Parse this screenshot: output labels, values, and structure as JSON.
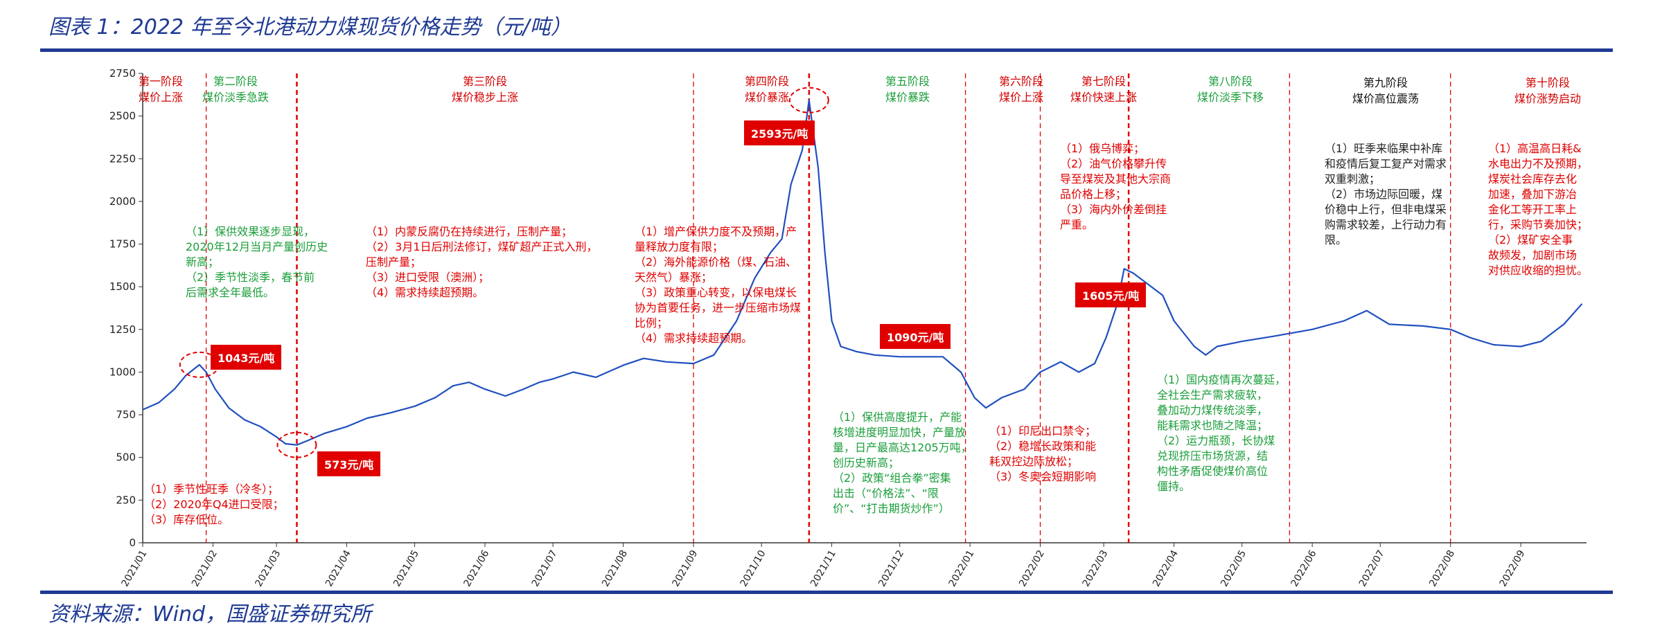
{
  "header": {
    "title": "图表 1：2022 年至今北港动力煤现货价格走势（元/吨）",
    "source": "资料来源：Wind，国盛证券研究所"
  },
  "colors": {
    "line": "#1f4fbf",
    "stage_divider": "#e00000",
    "callout_box": "#e00000",
    "rule": "#1f3a93"
  },
  "chart_data": {
    "type": "line",
    "title": "",
    "xlabel": "",
    "ylabel": "",
    "ylim": [
      0,
      2750
    ],
    "y_ticks": [
      0,
      250,
      500,
      750,
      1000,
      1250,
      1500,
      1750,
      2000,
      2250,
      2500,
      2750
    ],
    "x_range": [
      "2021-01-01",
      "2022-09-30"
    ],
    "x_ticks": [
      "2021/01",
      "2021/02",
      "2021/03",
      "2021/04",
      "2021/05",
      "2021/06",
      "2021/07",
      "2021/08",
      "2021/09",
      "2021/10",
      "2021/11",
      "2021/12",
      "2022/01",
      "2022/02",
      "2022/03",
      "2022/04",
      "2022/05",
      "2022/06",
      "2022/07",
      "2022/08",
      "2022/09"
    ],
    "grid": false,
    "series": [
      {
        "x": [
          "2021-01-01",
          "2021-01-08",
          "2021-01-15",
          "2021-01-20",
          "2021-01-26",
          "2021-01-29",
          "2021-02-02",
          "2021-02-08",
          "2021-02-15",
          "2021-02-22",
          "2021-03-01",
          "2021-03-05",
          "2021-03-10",
          "2021-03-15",
          "2021-03-22",
          "2021-04-01",
          "2021-04-10",
          "2021-04-20",
          "2021-05-01",
          "2021-05-10",
          "2021-05-18",
          "2021-05-25",
          "2021-06-01",
          "2021-06-10",
          "2021-06-18",
          "2021-06-25",
          "2021-07-01",
          "2021-07-10",
          "2021-07-20",
          "2021-08-01",
          "2021-08-10",
          "2021-08-20",
          "2021-09-01",
          "2021-09-10",
          "2021-09-20",
          "2021-09-28",
          "2021-10-05",
          "2021-10-10",
          "2021-10-14",
          "2021-10-19",
          "2021-10-22",
          "2021-10-26",
          "2021-10-29",
          "2021-11-01",
          "2021-11-05",
          "2021-11-12",
          "2021-11-20",
          "2021-12-01",
          "2021-12-10",
          "2021-12-20",
          "2021-12-28",
          "2022-01-03",
          "2022-01-08",
          "2022-01-15",
          "2022-01-25",
          "2022-02-01",
          "2022-02-10",
          "2022-02-18",
          "2022-02-25",
          "2022-03-02",
          "2022-03-07",
          "2022-03-10",
          "2022-03-14",
          "2022-03-20",
          "2022-03-27",
          "2022-04-01",
          "2022-04-10",
          "2022-04-15",
          "2022-04-20",
          "2022-05-01",
          "2022-05-15",
          "2022-06-01",
          "2022-06-15",
          "2022-06-25",
          "2022-07-05",
          "2022-07-20",
          "2022-08-01",
          "2022-08-10",
          "2022-08-20",
          "2022-09-01",
          "2022-09-10",
          "2022-09-20",
          "2022-09-28"
        ],
        "y": [
          780,
          820,
          900,
          980,
          1043,
          1000,
          900,
          790,
          720,
          680,
          620,
          580,
          573,
          600,
          640,
          680,
          730,
          760,
          800,
          850,
          920,
          940,
          900,
          860,
          900,
          940,
          960,
          1000,
          970,
          1040,
          1080,
          1060,
          1050,
          1100,
          1300,
          1550,
          1700,
          1780,
          2100,
          2300,
          2593,
          2200,
          1700,
          1300,
          1150,
          1120,
          1100,
          1090,
          1090,
          1090,
          1000,
          850,
          790,
          850,
          900,
          1000,
          1060,
          1000,
          1050,
          1200,
          1400,
          1605,
          1580,
          1520,
          1450,
          1300,
          1150,
          1100,
          1150,
          1180,
          1210,
          1250,
          1300,
          1360,
          1280,
          1270,
          1250,
          1200,
          1160,
          1150,
          1180,
          1280,
          1400
        ]
      }
    ],
    "callouts": [
      "1043元/吨",
      "573元/吨",
      "2593元/吨",
      "1090元/吨",
      "1605元/吨"
    ],
    "stages": [
      {
        "name": "第一阶段",
        "desc": "煤价上涨",
        "color": "red"
      },
      {
        "name": "第二阶段",
        "desc": "煤价淡季急跌",
        "color": "green"
      },
      {
        "name": "第三阶段",
        "desc": "煤价稳步上涨",
        "color": "red"
      },
      {
        "name": "第四阶段",
        "desc": "煤价暴涨",
        "color": "red"
      },
      {
        "name": "第五阶段",
        "desc": "煤价暴跌",
        "color": "green"
      },
      {
        "name": "第六阶段",
        "desc": "煤价上涨",
        "color": "red"
      },
      {
        "name": "第七阶段",
        "desc": "煤价快速上涨",
        "color": "red"
      },
      {
        "name": "第八阶段",
        "desc": "煤价淡季下移",
        "color": "green"
      },
      {
        "name": "第九阶段",
        "desc": "煤价高位震荡",
        "color": "black"
      },
      {
        "name": "第十阶段",
        "desc": "煤价涨势启动",
        "color": "red"
      }
    ],
    "annotations": [
      {
        "id": "s1",
        "color": "red",
        "text": "（1）季节性旺季（冷冬）；\n（2）2020年Q4进口受限；\n（3）库存低位。"
      },
      {
        "id": "s2",
        "color": "green",
        "text": "（1）保供效果逐步显现，\n2020年12月当月产量创历史\n新高；\n（2）季节性淡季，春节前\n后需求全年最低。"
      },
      {
        "id": "s3",
        "color": "red",
        "text": "（1）内蒙反腐仍在持续进行，压制产量；\n（2）3月1日后刑法修订，煤矿超产正式入刑，\n压制产量；\n（3）进口受限（澳洲）；\n（4）需求持续超预期。"
      },
      {
        "id": "s4",
        "color": "red",
        "text": "（1）增产保供力度不及预期，产\n量释放力度有限；\n（2）海外能源价格（煤、石油、\n天然气）暴涨；\n（3）政策重心转变，以保电煤长\n协为首要任务，进一步压缩市场煤\n比例；\n（4）需求持续超预期。"
      },
      {
        "id": "s5",
        "color": "green",
        "text": "（1）保供高度提升，产能\n核增进度明显加快，产量放\n量，日产最高达1205万吨，\n创历史新高；\n（2）政策“组合拳”密集\n出击（“价格法”、“限\n价”、“打击期货炒作”）"
      },
      {
        "id": "s6",
        "color": "red",
        "text": "（1）印尼出口禁令；\n（2）稳增长政策和能\n耗双控边际放松；\n（3）冬奥会短期影响"
      },
      {
        "id": "s7",
        "color": "red",
        "text": "（1）俄乌博弈；\n（2）油气价格攀升传\n导至煤炭及其他大宗商\n品价格上移；\n（3）海内外价差倒挂\n严重。"
      },
      {
        "id": "s8",
        "color": "green",
        "text": "（1）国内疫情再次蔓延，\n全社会生产需求疲软，\n叠加动力煤传统淡季，\n能耗需求也随之降温；\n（2）运力瓶颈，长协煤\n兑现挤压市场货源，结\n构性矛盾促使煤价高位\n僵持。"
      },
      {
        "id": "s9",
        "color": "black",
        "text": "（1）旺季来临果中补库\n和疫情后复工复产对需求\n双重刺激；\n（2）市场边际回暖，煤\n价稳中上行，但非电煤采\n购需求较差，上行动力有\n限。"
      },
      {
        "id": "s10",
        "color": "red",
        "text": "（1）高温高日耗&\n水电出力不及预期，\n煤炭社会库存去化\n加速，叠加下游冶\n金化工等开工率上\n行，采购节奏加快；\n（2）煤矿安全事\n故频发，加剧市场\n对供应收缩的担忧。"
      }
    ]
  }
}
